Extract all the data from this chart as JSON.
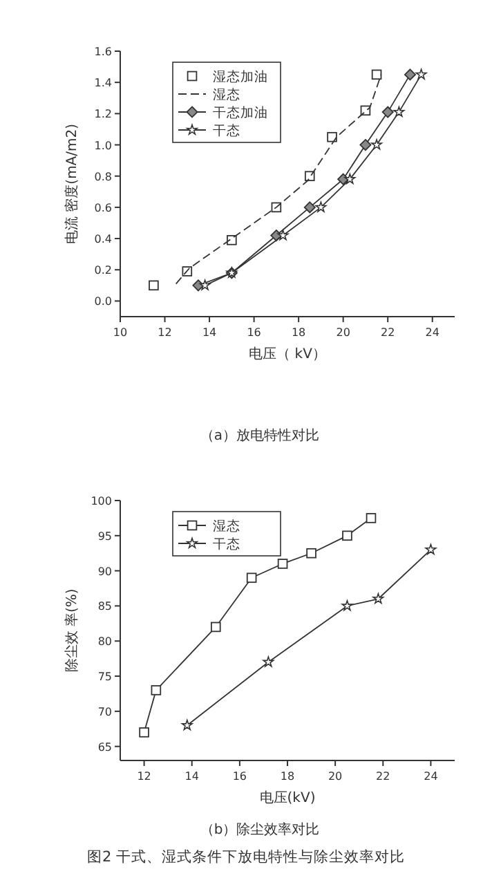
{
  "chart_data": [
    {
      "type": "line",
      "title": "（a）放电特性对比",
      "xlabel": "电压（ kV）",
      "ylabel": "电流 密度(mA/m2)",
      "xlim": [
        10,
        25
      ],
      "xticks": [
        10,
        12,
        14,
        16,
        18,
        20,
        22,
        24
      ],
      "ylim": [
        -0.1,
        1.6
      ],
      "yticks": [
        {
          "value": 0,
          "label": "0.0"
        },
        0.2,
        0.4,
        0.6,
        0.8,
        {
          "value": 1,
          "label": "1.0"
        },
        1.2,
        1.4,
        1.6
      ],
      "legend": "top left",
      "grid": false,
      "series": [
        {
          "name": "湿态加油",
          "type": "scatter",
          "marker": "square",
          "color": "#333333",
          "x": [
            11.5,
            13,
            15,
            17,
            18.5,
            19.5,
            21,
            21.5
          ],
          "values": [
            0.1,
            0.19,
            0.39,
            0.6,
            0.8,
            1.05,
            1.22,
            1.45
          ]
        },
        {
          "name": "湿态",
          "type": "line",
          "marker": "none",
          "line_style": "dashed",
          "color": "#333333",
          "x": [
            12.5,
            13.1,
            15,
            17,
            18.4,
            19.7,
            21.2,
            21.7
          ],
          "values": [
            0.11,
            0.21,
            0.4,
            0.6,
            0.77,
            1.05,
            1.24,
            1.45
          ]
        },
        {
          "name": "干态加油",
          "type": "line",
          "marker": "diamond",
          "color": "#333333",
          "x": [
            13.5,
            15,
            17,
            18.5,
            20,
            21,
            22,
            23
          ],
          "values": [
            0.1,
            0.18,
            0.42,
            0.6,
            0.78,
            1.0,
            1.21,
            1.45
          ]
        },
        {
          "name": "干态",
          "type": "line",
          "marker": "star",
          "color": "#333333",
          "x": [
            13.8,
            15,
            17.3,
            19,
            20.3,
            21.5,
            22.5,
            23.5
          ],
          "values": [
            0.1,
            0.18,
            0.42,
            0.6,
            0.78,
            1.0,
            1.21,
            1.45
          ]
        }
      ]
    },
    {
      "type": "line",
      "title": "（b）除尘效率对比",
      "xlabel": "电压(kV)",
      "ylabel": "除尘效 率(%)",
      "xlim": [
        11,
        25
      ],
      "xticks": [
        12,
        14,
        16,
        18,
        20,
        22,
        24
      ],
      "ylim": [
        63,
        100
      ],
      "yticks": [
        65,
        70,
        75,
        80,
        85,
        90,
        95,
        100
      ],
      "legend": "top left",
      "grid": false,
      "annotations": [
        "图2 干式、湿式条件下放电特性与除尘效率对比"
      ],
      "series": [
        {
          "name": "湿态",
          "marker": "square",
          "color": "#333333",
          "x": [
            12,
            12.5,
            15,
            16.5,
            17.8,
            19,
            20.5,
            21.5
          ],
          "values": [
            67,
            73,
            82,
            89,
            91,
            92.5,
            95,
            97.5
          ]
        },
        {
          "name": "干态",
          "marker": "star",
          "color": "#333333",
          "x": [
            13.8,
            17.2,
            20.5,
            21.8,
            24
          ],
          "values": [
            68,
            77,
            85,
            86,
            93
          ]
        }
      ]
    }
  ]
}
